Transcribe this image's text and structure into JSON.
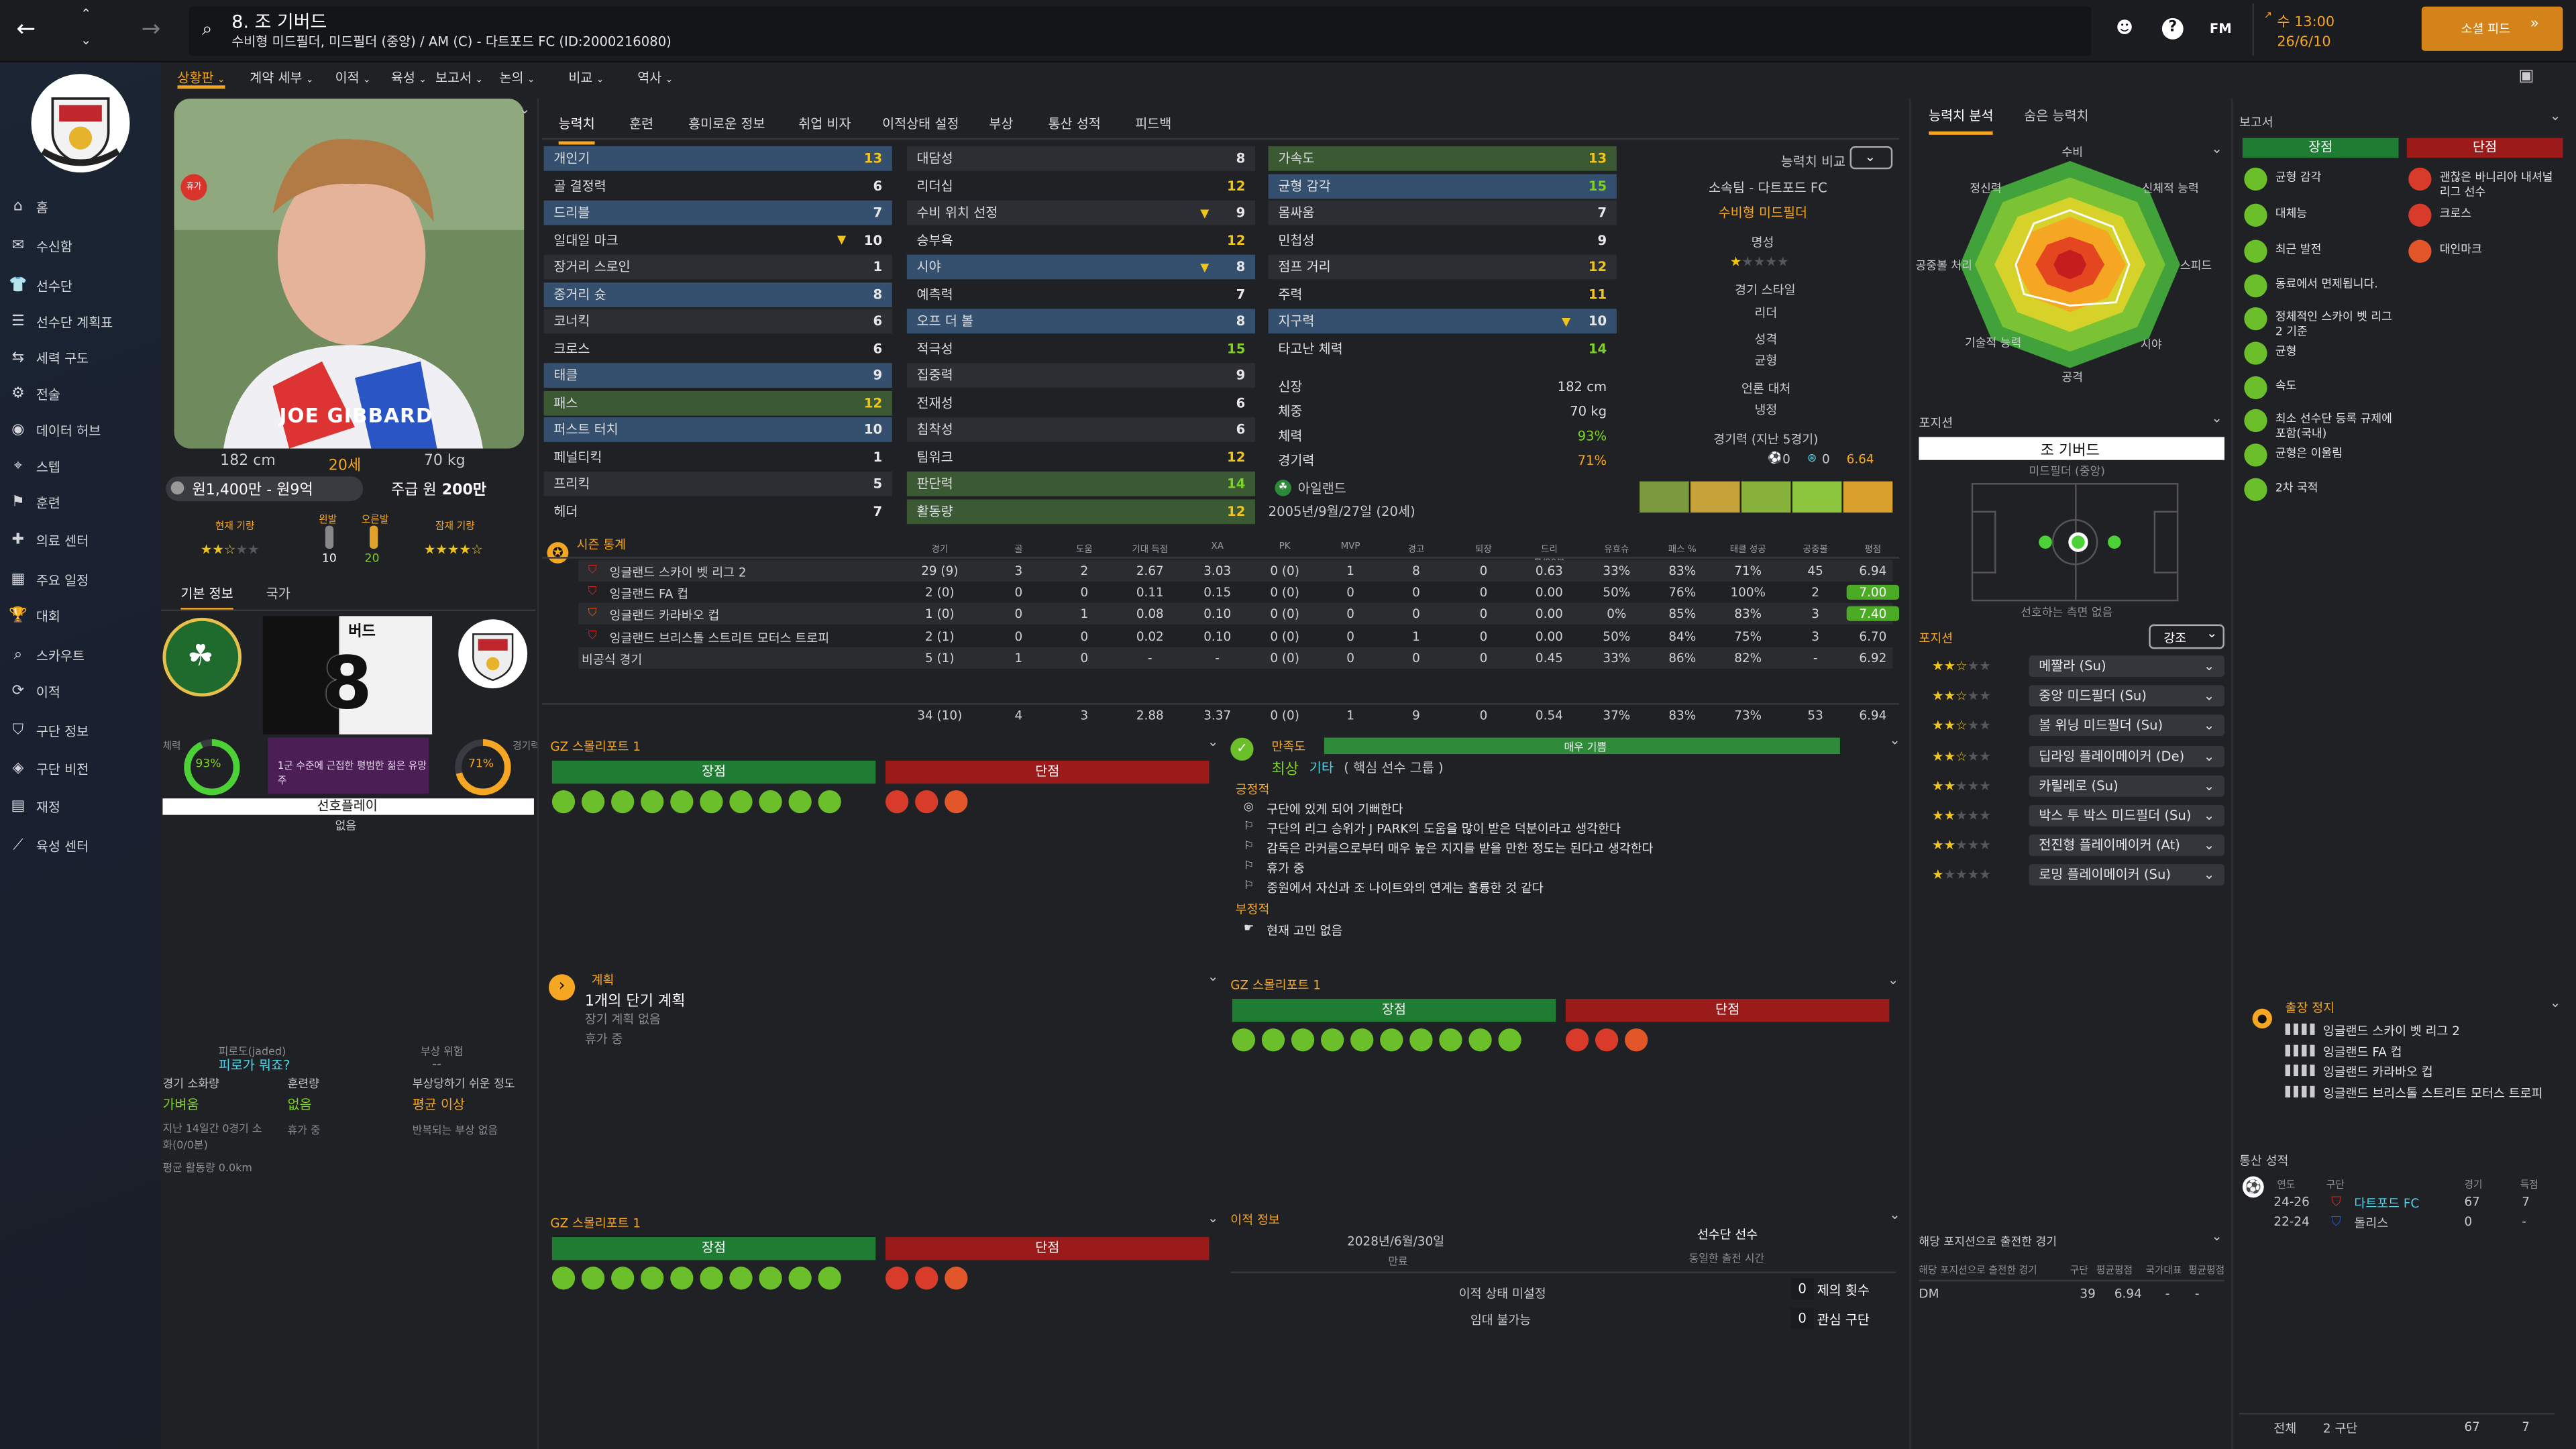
{
  "topbar": {
    "player_title": "8. 조 기버드",
    "player_subtitle": "수비형 미드필더, 미드필더 (중앙) / AM (C) - 다트포드 FC (ID:2000216080)",
    "fm_label": "FM",
    "time": "수 13:00",
    "date": "26/6/10",
    "continue_label": "소셜 피드"
  },
  "subnav": [
    "상황판",
    "계약 세부",
    "이적",
    "육성",
    "보고서",
    "논의",
    "비교",
    "역사"
  ],
  "sidebar": [
    "홈",
    "수신함",
    "선수단",
    "선수단 계획표",
    "세력 구도",
    "전술",
    "데이터 허브",
    "스텝",
    "훈련",
    "의료 센터",
    "주요 일정",
    "대회",
    "스카우트",
    "이적",
    "구단 정보",
    "구단 비전",
    "재정",
    "육성 센터"
  ],
  "profile": {
    "shirt_name": "JOE GIBBARD",
    "height": "182 cm",
    "age": "20세",
    "weight": "70 kg",
    "value": "원1,400만 - 원9억",
    "wage_prefix": "주급 원",
    "wage": "200만",
    "current_ability_label": "현재 기량",
    "left_foot_label": "왼발",
    "right_foot_label": "오른발",
    "left_foot": "10",
    "right_foot": "20",
    "potential_label": "잠재 기량",
    "tabs": [
      "기본 정보",
      "국가"
    ],
    "shirt_label": "버드",
    "shirt_number": "8",
    "fitness_label": "체력",
    "fitness": "93%",
    "condition_label": "경기력",
    "condition": "71%",
    "status_text": "1군 수준에 근접한 평범한 젊은 유망주",
    "selection_label": "선호플레이",
    "selection_value": "없음",
    "fatigue_title": "피로도(jaded)",
    "fatigue_value": "피로가 뭐죠?",
    "injury_risk_title": "부상 위험",
    "injury_risk_value": "--",
    "match_load_title": "경기 소화량",
    "match_load_value": "가벼움",
    "training_load_title": "훈련량",
    "training_load_value": "없음",
    "injury_prone_title": "부상당하기 쉬운 정도",
    "injury_prone_value": "평균 이상",
    "match_load_note": "지난 14일간 0경기 소화(0/0분)",
    "training_note": "휴가 중",
    "injury_note": "반복되는 부상 없음",
    "avg_distance": "평균 활동량 0.0km"
  },
  "tabs": [
    "능력치",
    "훈련",
    "흥미로운 정보",
    "취업 비자",
    "이적상태 설정",
    "부상",
    "통산 성적",
    "피드백"
  ],
  "attributes": {
    "technical": [
      {
        "n": "개인기",
        "v": "13"
      },
      {
        "n": "골 결정력",
        "v": "6"
      },
      {
        "n": "드리블",
        "v": "7"
      },
      {
        "n": "일대일 마크",
        "v": "10"
      },
      {
        "n": "장거리 스로인",
        "v": "1"
      },
      {
        "n": "중거리 슛",
        "v": "8"
      },
      {
        "n": "코너킥",
        "v": "6"
      },
      {
        "n": "크로스",
        "v": "6"
      },
      {
        "n": "태클",
        "v": "9"
      },
      {
        "n": "패스",
        "v": "12"
      },
      {
        "n": "퍼스트 터치",
        "v": "10"
      },
      {
        "n": "페널티킥",
        "v": "1"
      },
      {
        "n": "프리킥",
        "v": "5"
      },
      {
        "n": "헤더",
        "v": "7"
      }
    ],
    "mental": [
      {
        "n": "대담성",
        "v": "8"
      },
      {
        "n": "리더십",
        "v": "12"
      },
      {
        "n": "수비 위치 선정",
        "v": "9"
      },
      {
        "n": "승부욕",
        "v": "12"
      },
      {
        "n": "시야",
        "v": "8"
      },
      {
        "n": "예측력",
        "v": "7"
      },
      {
        "n": "오프 더 볼",
        "v": "8"
      },
      {
        "n": "적극성",
        "v": "15"
      },
      {
        "n": "집중력",
        "v": "9"
      },
      {
        "n": "전재성",
        "v": "6"
      },
      {
        "n": "침착성",
        "v": "6"
      },
      {
        "n": "팀워크",
        "v": "12"
      },
      {
        "n": "판단력",
        "v": "14"
      },
      {
        "n": "활동량",
        "v": "12"
      }
    ],
    "physical": [
      {
        "n": "가속도",
        "v": "13"
      },
      {
        "n": "균형 감각",
        "v": "15"
      },
      {
        "n": "몸싸움",
        "v": "7"
      },
      {
        "n": "민첩성",
        "v": "9"
      },
      {
        "n": "점프 거리",
        "v": "12"
      },
      {
        "n": "주력",
        "v": "11"
      },
      {
        "n": "지구력",
        "v": "10"
      },
      {
        "n": "타고난 체력",
        "v": "14"
      }
    ],
    "info": [
      {
        "n": "신장",
        "v": "182 cm"
      },
      {
        "n": "체중",
        "v": "70 kg"
      },
      {
        "n": "체력",
        "v": "93%"
      },
      {
        "n": "경기력",
        "v": "71%"
      }
    ],
    "nationality": "아일랜드",
    "birth": "2005년/9월/27일 (20세)"
  },
  "compare": {
    "label": "능력치 비교",
    "club_label": "소속팀 - 다트포드 FC",
    "position": "수비형 미드필더",
    "reputation": "명성",
    "style_label": "경기 스타일",
    "style": "리더",
    "personality_label": "성격",
    "personality": "균형",
    "media_label": "언론 대처",
    "media": "냉정",
    "form_label": "경기력 (지난 5경기)",
    "form_a": "0",
    "form_b": "0",
    "form_rating": "6.64"
  },
  "stats": {
    "title": "시즌 통계",
    "headers": [
      "경기",
      "골",
      "도움",
      "기대 득점",
      "XA",
      "PK",
      "MVP",
      "경고",
      "퇴장",
      "드리블/90분",
      "유효슈",
      "패스 %",
      "태클 성공",
      "공중볼",
      "평점"
    ],
    "rows": [
      {
        "comp": "잉글랜드 스카이 벳 리그 2",
        "vals": [
          "29 (9)",
          "3",
          "2",
          "2.67",
          "3.03",
          "0 (0)",
          "1",
          "8",
          "0",
          "0.63",
          "33%",
          "83%",
          "71%",
          "45",
          "6.94"
        ]
      },
      {
        "comp": "잉글랜드 FA 컵",
        "vals": [
          "2 (0)",
          "0",
          "0",
          "0.11",
          "0.15",
          "0 (0)",
          "0",
          "0",
          "0",
          "0.00",
          "50%",
          "76%",
          "100%",
          "2",
          "7.00"
        ]
      },
      {
        "comp": "잉글랜드 카라바오 컵",
        "vals": [
          "1 (0)",
          "0",
          "1",
          "0.08",
          "0.10",
          "0 (0)",
          "0",
          "0",
          "0",
          "0.00",
          "0%",
          "85%",
          "83%",
          "3",
          "7.40"
        ]
      },
      {
        "comp": "잉글랜드 브리스톨 스트리트 모터스 트로피",
        "vals": [
          "2 (1)",
          "0",
          "0",
          "0.02",
          "0.10",
          "0 (0)",
          "0",
          "1",
          "0",
          "0.00",
          "50%",
          "84%",
          "75%",
          "3",
          "6.70"
        ]
      },
      {
        "comp": "비공식 경기",
        "vals": [
          "5 (1)",
          "1",
          "0",
          "-",
          "-",
          "0 (0)",
          "0",
          "0",
          "0",
          "0.45",
          "33%",
          "86%",
          "82%",
          "-",
          "6.92"
        ]
      }
    ],
    "totals": [
      "34 (10)",
      "4",
      "3",
      "2.88",
      "3.37",
      "0 (0)",
      "1",
      "9",
      "0",
      "0.54",
      "37%",
      "83%",
      "73%",
      "53",
      "6.94"
    ]
  },
  "scout": {
    "title": "GZ 스몰리포트 1",
    "strengths": "장점",
    "weaknesses": "단점"
  },
  "happiness": {
    "title": "만족도",
    "bar_label": "매우 기쁨",
    "level": "최상",
    "level_note": "기타",
    "level_sub": "( 핵심 선수 그룹 )",
    "positive_label": "긍정적",
    "positives": [
      "구단에 있게 되어 기뻐한다",
      "구단의 리그 승위가 J PARK의 도움을 많이 받은 덕분이라고 생각한다",
      "감독은 라커룸으로부터 매우 높은 지지를 받을 만한 정도는 된다고 생각한다",
      "휴가 중",
      "중원에서 자신과 조 나이트와의 연계는 훌륭한 것 같다"
    ],
    "negative_label": "부정적",
    "negatives": [
      "현재 고민 없음"
    ],
    "fill": 1.0
  },
  "plans": {
    "title": "계획",
    "main": "1개의 단기 계획",
    "lines": [
      "장기 계획 없음",
      "휴가 중"
    ]
  },
  "transfer": {
    "title": "이적 정보",
    "contract_date": "2028년/6월/30일",
    "contract_label": "만료",
    "squad_label": "선수단 선수",
    "squad_sub": "동일한 출전 시간",
    "status_label": "이적 상태 미설정",
    "loan_label": "임대 불가능",
    "offers_count": "0",
    "offers_label": "제의 횟수",
    "interest_count": "0",
    "interest_label": "관심 구단"
  },
  "analysis": {
    "tabs": [
      "능력치 분석",
      "숨은 능력치"
    ],
    "axes": [
      "수비",
      "신체적 능력",
      "스피드",
      "시야",
      "공격",
      "기술적 능력",
      "공중볼 처리",
      "정신력"
    ]
  },
  "positions": {
    "title": "포지션",
    "name": "조 기버드",
    "pos": "미드필더 (중앙)",
    "pitch_note": "선호하는 측면 없음",
    "roles_title": "포지션",
    "sort_label": "강조",
    "roles": [
      {
        "name": "메짤라 (Su)",
        "stars": 2.5
      },
      {
        "name": "중앙 미드필더 (Su)",
        "stars": 2.5
      },
      {
        "name": "볼 위닝 미드필더 (Su)",
        "stars": 2.5
      },
      {
        "name": "딥라잉 플레이메이커 (De)",
        "stars": 2.5
      },
      {
        "name": "카릴레로 (Su)",
        "stars": 2.0
      },
      {
        "name": "박스 투 박스 미드필더 (Su)",
        "stars": 2.0
      },
      {
        "name": "전진형 플레이메이커 (At)",
        "stars": 2.0
      },
      {
        "name": "로밍 플레이메이커 (Su)",
        "stars": 1.0
      }
    ]
  },
  "history_pos": {
    "title": "해당 포지션으로 출전한 경기",
    "sub": "해당 포지션으로 출전한 경기",
    "headers": [
      "구단",
      "평균평점",
      "국가대표",
      "평균평점"
    ],
    "rows": [
      {
        "pos": "DM",
        "apps": "39",
        "rating": "6.94",
        "intl": "-",
        "intl_rating": "-"
      }
    ]
  },
  "report": {
    "title": "보고서",
    "strengths": "장점",
    "weaknesses": "단점",
    "strength_items": [
      "균형 감각",
      "대체능",
      "최근 발전",
      "동료에서 면제됩니다.",
      "정체적인 스카이 벳 리그 2 기준",
      "균형",
      "속도",
      "최소 선수단 등록 규제에 포함(국내)",
      "균형은 이울림",
      "2차 국적"
    ],
    "weakness_items": [
      "괜찮은 바니리아 내셔널 리그 선수",
      "크로스",
      "대인마크"
    ]
  },
  "suspension": {
    "title": "출장 정지",
    "items": [
      "잉글랜드 스카이 벳 리그 2",
      "잉글랜드 FA 컵",
      "잉글랜드 카라바오 컵",
      "잉글랜드 브리스톨 스트리트 모터스 트로피"
    ]
  },
  "career": {
    "title": "통산 성적",
    "headers": [
      "연도",
      "구단",
      "경기",
      "득점"
    ],
    "rows": [
      {
        "year": "24-26",
        "club": "다트포드 FC",
        "apps": "67",
        "goals": "7"
      },
      {
        "year": "22-24",
        "club": "돌리스",
        "apps": "0",
        "goals": "-"
      }
    ],
    "total_label": "전체",
    "total_clubs": "2 구단",
    "total_apps": "67",
    "total_goals": "7"
  }
}
